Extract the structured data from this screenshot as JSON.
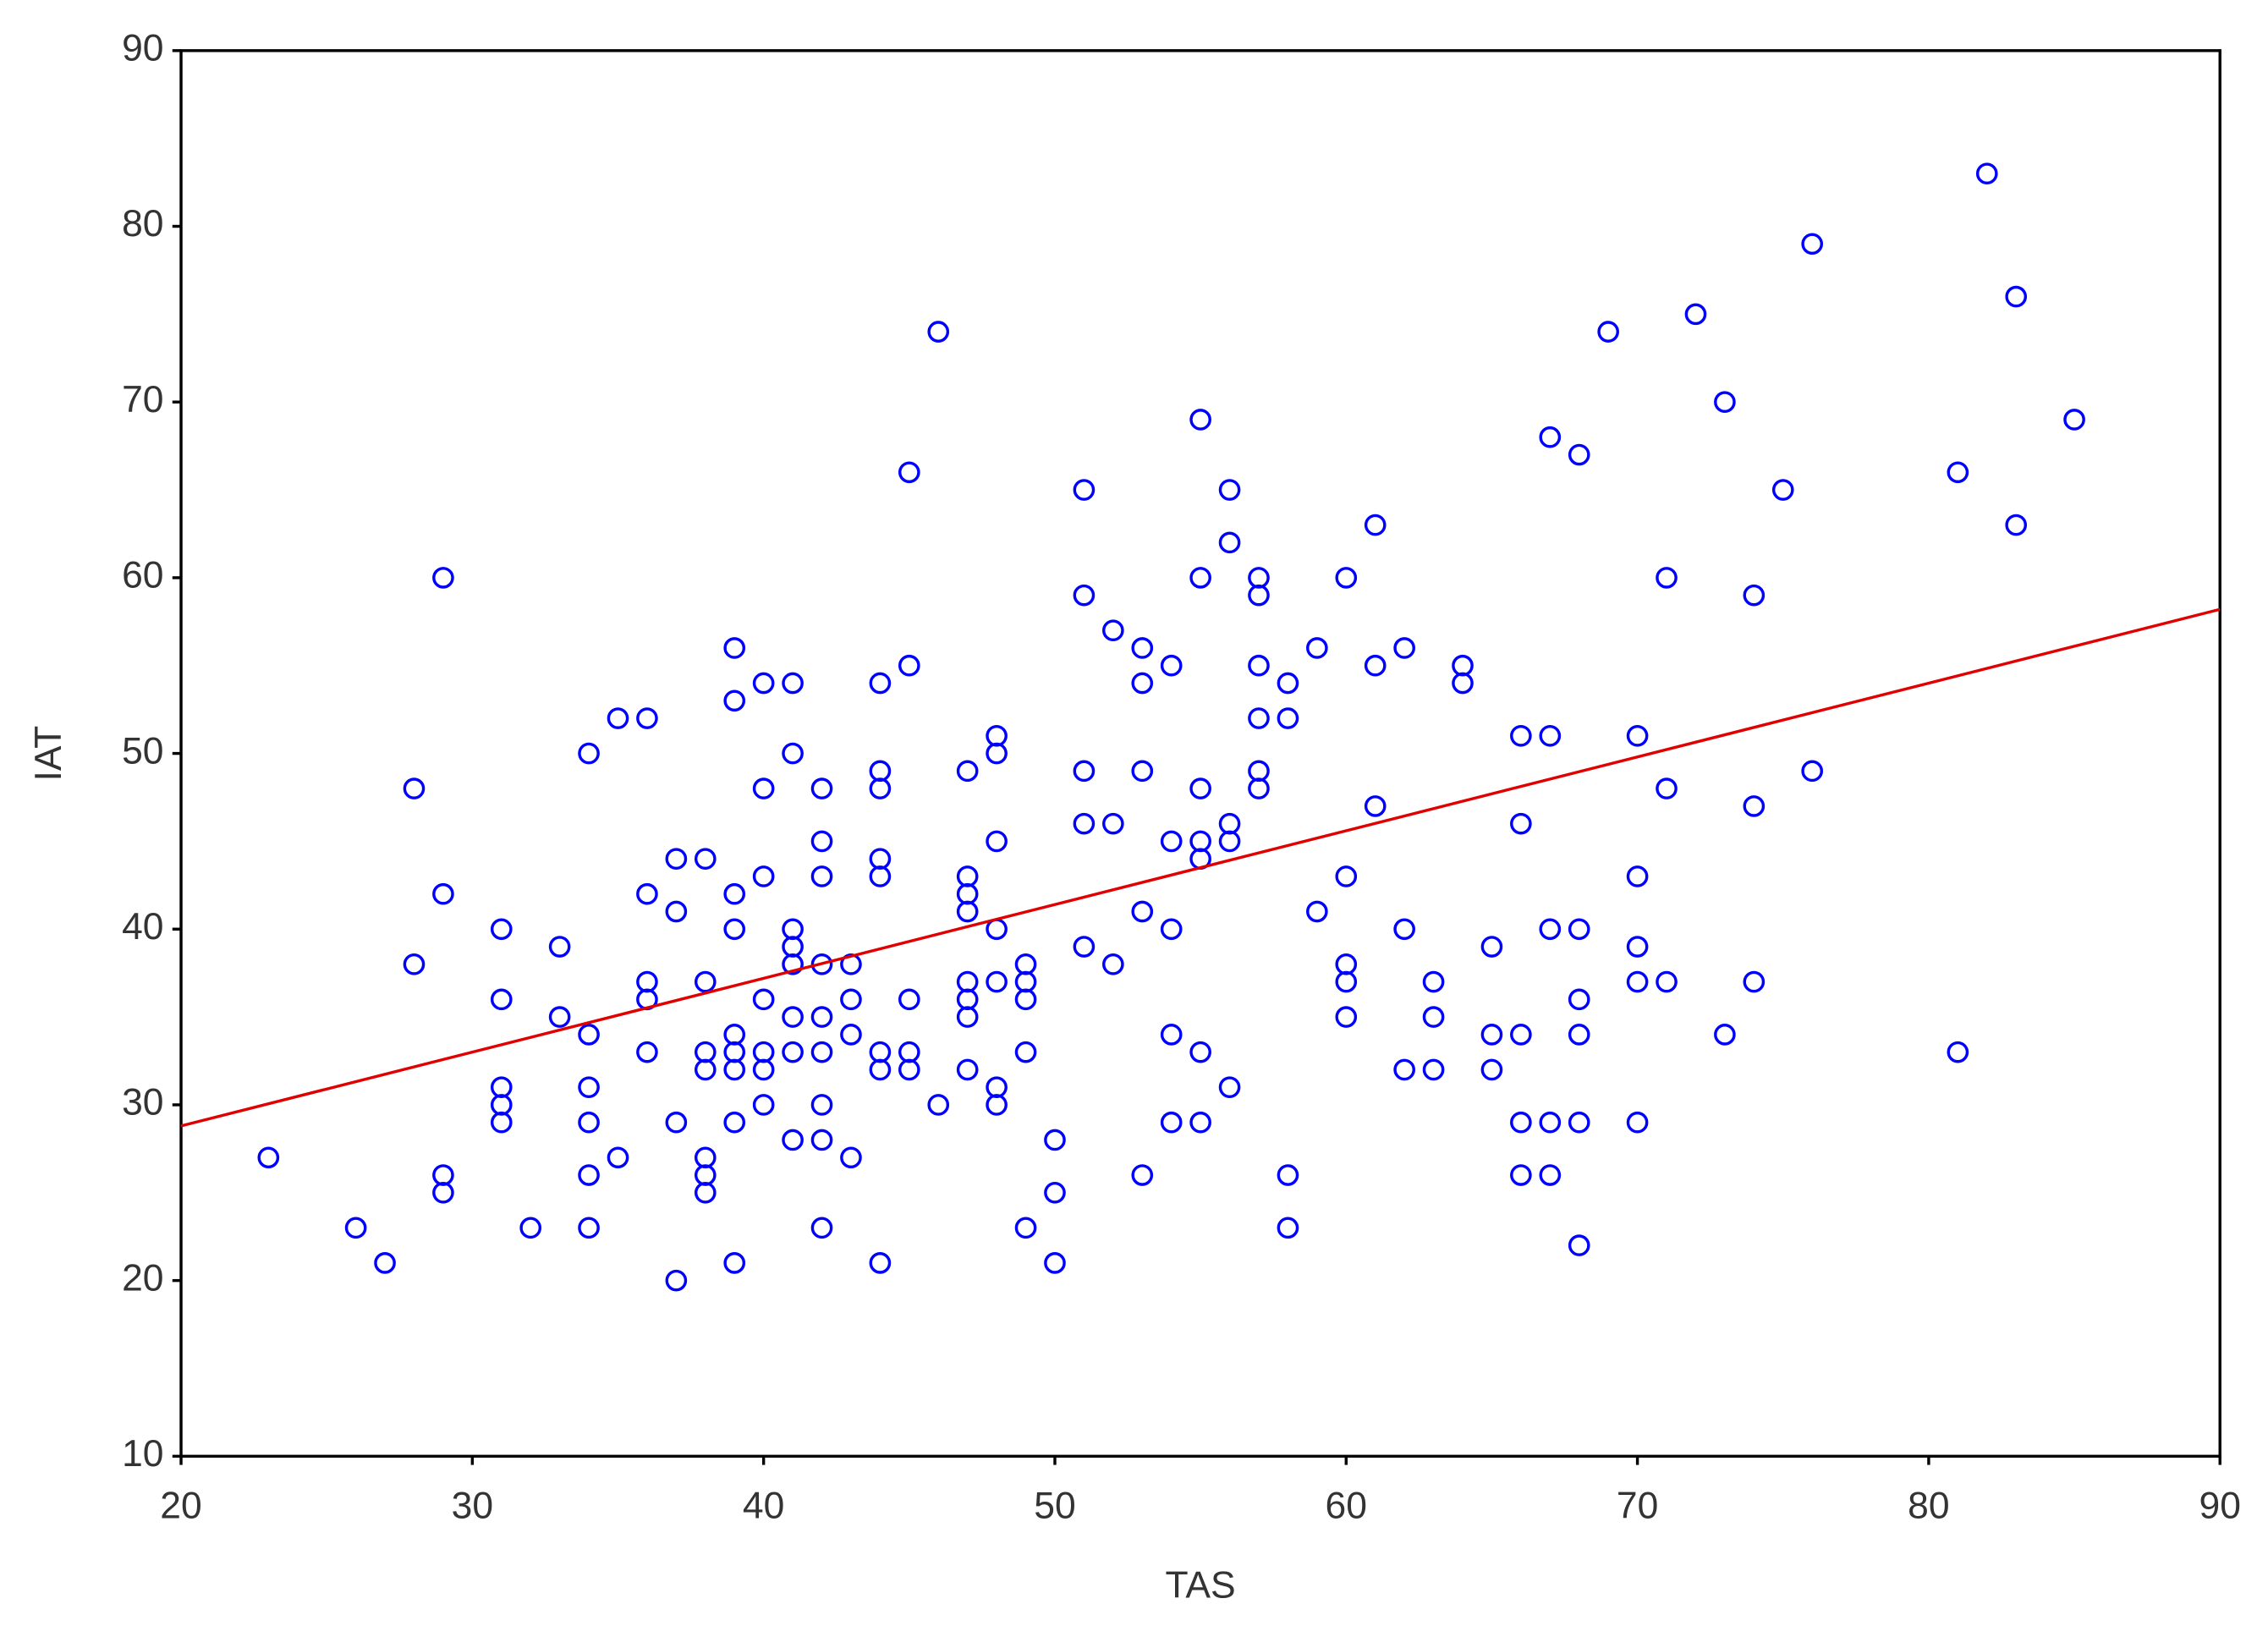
{
  "chart_data": {
    "type": "scatter",
    "x_label": "TAS",
    "y_label": "IAT",
    "xlim": [
      20,
      90
    ],
    "xticks": [
      20,
      30,
      40,
      50,
      60,
      70,
      80,
      90
    ],
    "ylim": [
      10,
      90
    ],
    "yticks": [
      10,
      20,
      30,
      40,
      50,
      60,
      70,
      80,
      90
    ],
    "grid": false,
    "series": [
      {
        "color": "#0000ff",
        "x": [
          23,
          26,
          27,
          28,
          28,
          29,
          29,
          29,
          29,
          31,
          31,
          31,
          31,
          31,
          32,
          33,
          33,
          34,
          34,
          34,
          34,
          34,
          34,
          35,
          35,
          36,
          36,
          36,
          36,
          36,
          37,
          37,
          37,
          37,
          38,
          38,
          38,
          38,
          38,
          38,
          38,
          39,
          39,
          39,
          39,
          39,
          39,
          39,
          39,
          39,
          40,
          40,
          40,
          40,
          40,
          40,
          40,
          41,
          41,
          41,
          41,
          41,
          41,
          41,
          41,
          42,
          42,
          42,
          42,
          42,
          42,
          42,
          42,
          42,
          43,
          43,
          43,
          43,
          44,
          44,
          44,
          44,
          44,
          44,
          44,
          44,
          45,
          45,
          45,
          45,
          45,
          46,
          46,
          47,
          47,
          47,
          47,
          47,
          47,
          47,
          47,
          48,
          48,
          48,
          48,
          48,
          48,
          48,
          49,
          49,
          49,
          49,
          49,
          50,
          50,
          50,
          51,
          51,
          51,
          51,
          51,
          52,
          52,
          52,
          53,
          53,
          53,
          53,
          53,
          54,
          54,
          54,
          54,
          54,
          55,
          55,
          55,
          55,
          55,
          55,
          55,
          56,
          56,
          56,
          56,
          56,
          57,
          57,
          57,
          57,
          57,
          57,
          58,
          58,
          58,
          58,
          59,
          59,
          60,
          60,
          60,
          60,
          60,
          61,
          61,
          61,
          62,
          62,
          62,
          63,
          63,
          63,
          64,
          64,
          65,
          65,
          65,
          66,
          66,
          66,
          66,
          66,
          67,
          67,
          67,
          67,
          67,
          68,
          68,
          68,
          68,
          68,
          68,
          69,
          70,
          70,
          70,
          70,
          70,
          71,
          71,
          71,
          72,
          73,
          73,
          74,
          74,
          74,
          75,
          76,
          76,
          81,
          81,
          82,
          83,
          83,
          85
        ],
        "values": [
          27,
          23,
          21,
          48,
          38,
          60,
          42,
          26,
          25,
          40,
          36,
          31,
          30,
          29,
          23,
          39,
          35,
          50,
          34,
          31,
          29,
          26,
          23,
          52,
          27,
          52,
          42,
          37,
          36,
          33,
          44,
          41,
          29,
          20,
          44,
          37,
          33,
          32,
          27,
          26,
          25,
          56,
          53,
          42,
          40,
          34,
          33,
          32,
          29,
          21,
          54,
          48,
          43,
          36,
          33,
          32,
          30,
          54,
          50,
          40,
          39,
          38,
          35,
          33,
          28,
          48,
          45,
          43,
          38,
          35,
          33,
          30,
          28,
          23,
          38,
          36,
          34,
          27,
          54,
          49,
          48,
          44,
          43,
          33,
          32,
          21,
          66,
          55,
          36,
          33,
          32,
          74,
          30,
          49,
          43,
          42,
          41,
          37,
          36,
          35,
          32,
          51,
          50,
          45,
          40,
          37,
          31,
          30,
          38,
          37,
          36,
          33,
          23,
          28,
          25,
          21,
          65,
          59,
          49,
          46,
          39,
          57,
          46,
          38,
          56,
          54,
          49,
          41,
          26,
          55,
          45,
          40,
          34,
          29,
          69,
          60,
          48,
          45,
          44,
          33,
          29,
          65,
          62,
          46,
          45,
          31,
          60,
          59,
          55,
          52,
          49,
          48,
          54,
          52,
          26,
          23,
          56,
          41,
          60,
          43,
          38,
          37,
          35,
          63,
          55,
          47,
          56,
          40,
          32,
          37,
          35,
          32,
          55,
          54,
          39,
          34,
          32,
          51,
          46,
          34,
          29,
          26,
          68,
          51,
          40,
          29,
          26,
          67,
          40,
          36,
          34,
          29,
          22,
          74,
          51,
          43,
          39,
          37,
          29,
          60,
          48,
          37,
          75,
          70,
          34,
          59,
          47,
          37,
          65,
          79,
          49,
          66,
          33,
          83,
          76,
          63,
          69
        ]
      }
    ],
    "trendline": {
      "color": "#e00000",
      "x": [
        20,
        90
      ],
      "y": [
        28.8,
        58.2
      ]
    }
  }
}
